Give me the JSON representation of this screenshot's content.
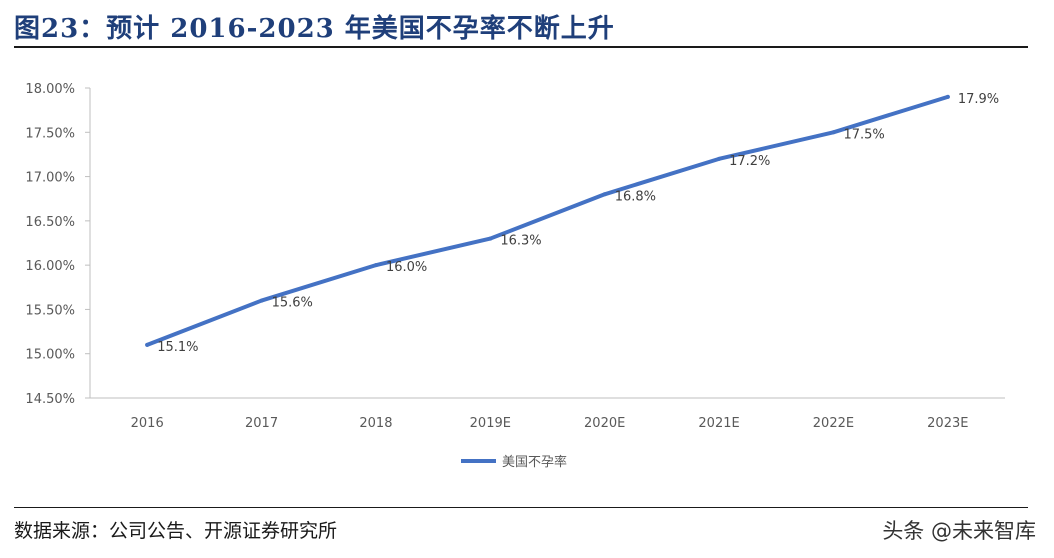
{
  "header": {
    "title": "图23：预计 2016-2023 年美国不孕率不断上升"
  },
  "footer": {
    "source": "数据来源：公司公告、开源证券研究所",
    "watermark": "头条 @未来智库"
  },
  "chart_data": {
    "type": "line",
    "categories": [
      "2016",
      "2017",
      "2018",
      "2019E",
      "2020E",
      "2021E",
      "2022E",
      "2023E"
    ],
    "series": [
      {
        "name": "美国不孕率",
        "values": [
          15.1,
          15.6,
          16.0,
          16.3,
          16.8,
          17.2,
          17.5,
          17.9
        ],
        "labels": [
          "15.1%",
          "15.6%",
          "16.0%",
          "16.3%",
          "16.8%",
          "17.2%",
          "17.5%",
          "17.9%"
        ],
        "color": "#4472c4"
      }
    ],
    "y_ticks": [
      "14.50%",
      "15.00%",
      "15.50%",
      "16.00%",
      "16.50%",
      "17.00%",
      "17.50%",
      "18.00%"
    ],
    "ylim": [
      14.5,
      18.0
    ],
    "y_unit": "%",
    "grid": false,
    "legend": "bottom-center"
  }
}
